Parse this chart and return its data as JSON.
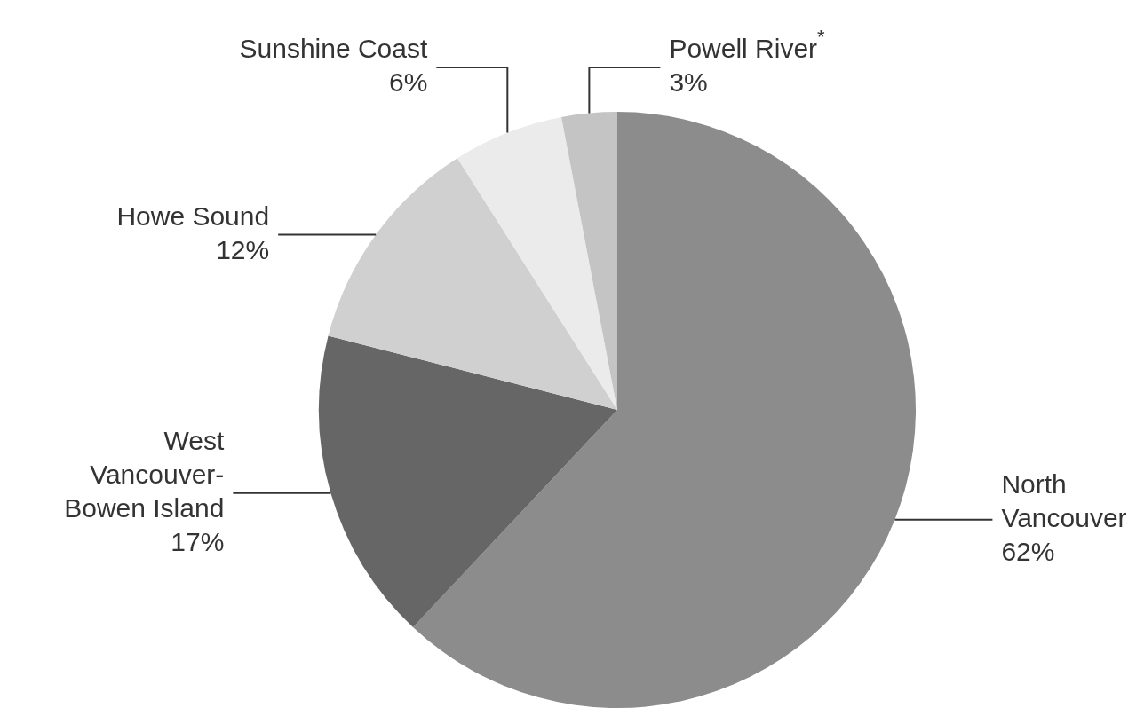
{
  "chart_data": {
    "type": "pie",
    "categories": [
      "North Vancouver",
      "West Vancouver-Bowen Island",
      "Howe Sound",
      "Sunshine Coast",
      "Powell River$^{*}$"
    ],
    "values": [
      62,
      17,
      12,
      6,
      3
    ],
    "value_labels": [
      "62%",
      "17%",
      "12%",
      "6%",
      "3%"
    ],
    "colors": [
      "#8c8c8c",
      "#666666",
      "#d0d0d0",
      "#ebebeb",
      "#c4c4c4"
    ],
    "legend": false
  }
}
